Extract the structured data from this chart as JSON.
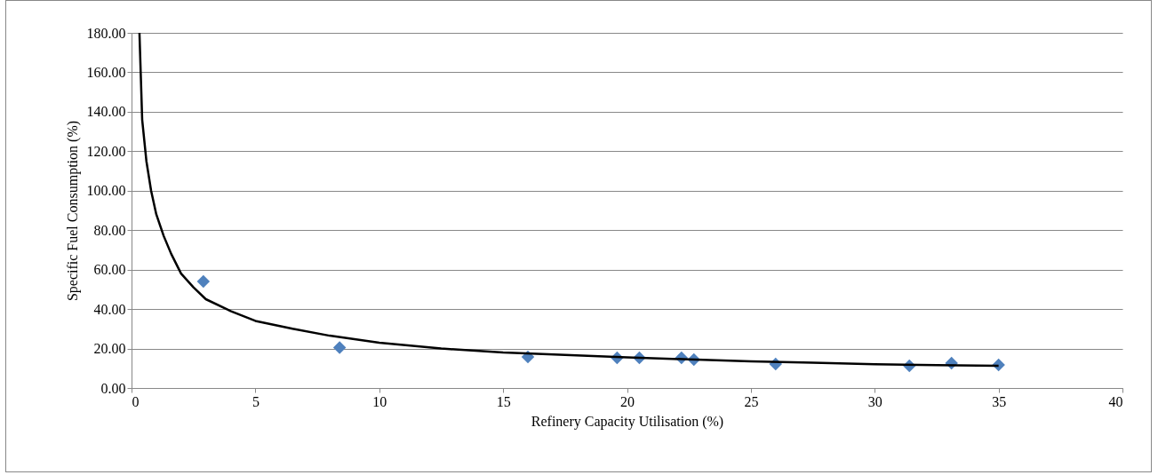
{
  "chart_data": {
    "type": "scatter",
    "xlabel": "Refinery Capacity Utilisation (%)",
    "ylabel": "Specific Fuel Consumption (%)",
    "xlim": [
      0,
      40
    ],
    "xticks": [
      0,
      5,
      10,
      15,
      20,
      25,
      30,
      35,
      40
    ],
    "ylim": [
      0,
      180
    ],
    "yticks": [
      {
        "value": 0,
        "label": "0.00"
      },
      {
        "value": 20,
        "label": "20.00"
      },
      {
        "value": 40,
        "label": "40.00"
      },
      {
        "value": 60,
        "label": "60.00"
      },
      {
        "value": 80,
        "label": "80.00"
      },
      {
        "value": 100,
        "label": "100.00"
      },
      {
        "value": 120,
        "label": "120.00"
      },
      {
        "value": 140,
        "label": "140.00"
      },
      {
        "value": 160,
        "label": "160.00"
      },
      {
        "value": 180,
        "label": "180.00"
      }
    ],
    "grid": "y",
    "series": [
      {
        "marker": "diamond",
        "color": "#4f81bd",
        "x": [
          2.9,
          8.4,
          16.0,
          19.6,
          20.5,
          22.2,
          22.7,
          26.0,
          31.4,
          33.1,
          35.0
        ],
        "values": [
          54,
          20.5,
          15.7,
          15.3,
          15.3,
          15.3,
          14.4,
          12.2,
          11.3,
          12.6,
          11.7
        ]
      },
      {
        "type": "line",
        "marker": "none",
        "line_style": "solid",
        "color": "#000000",
        "x": [
          0.32,
          0.43,
          0.6,
          0.79,
          1.0,
          1.3,
          1.6,
          2.0,
          2.5,
          3.0,
          4.0,
          5.0,
          6.5,
          8.0,
          10.0,
          12.5,
          15.0,
          17.5,
          20.0,
          22.5,
          25.0,
          27.5,
          30.0,
          32.5,
          35.0
        ],
        "values": [
          180,
          136,
          115,
          100,
          88,
          77,
          68,
          58,
          51,
          45,
          39,
          34,
          30,
          26.5,
          23,
          20,
          18,
          16.8,
          15.5,
          14.5,
          13.5,
          12.8,
          12,
          11.6,
          11.3
        ]
      }
    ]
  }
}
